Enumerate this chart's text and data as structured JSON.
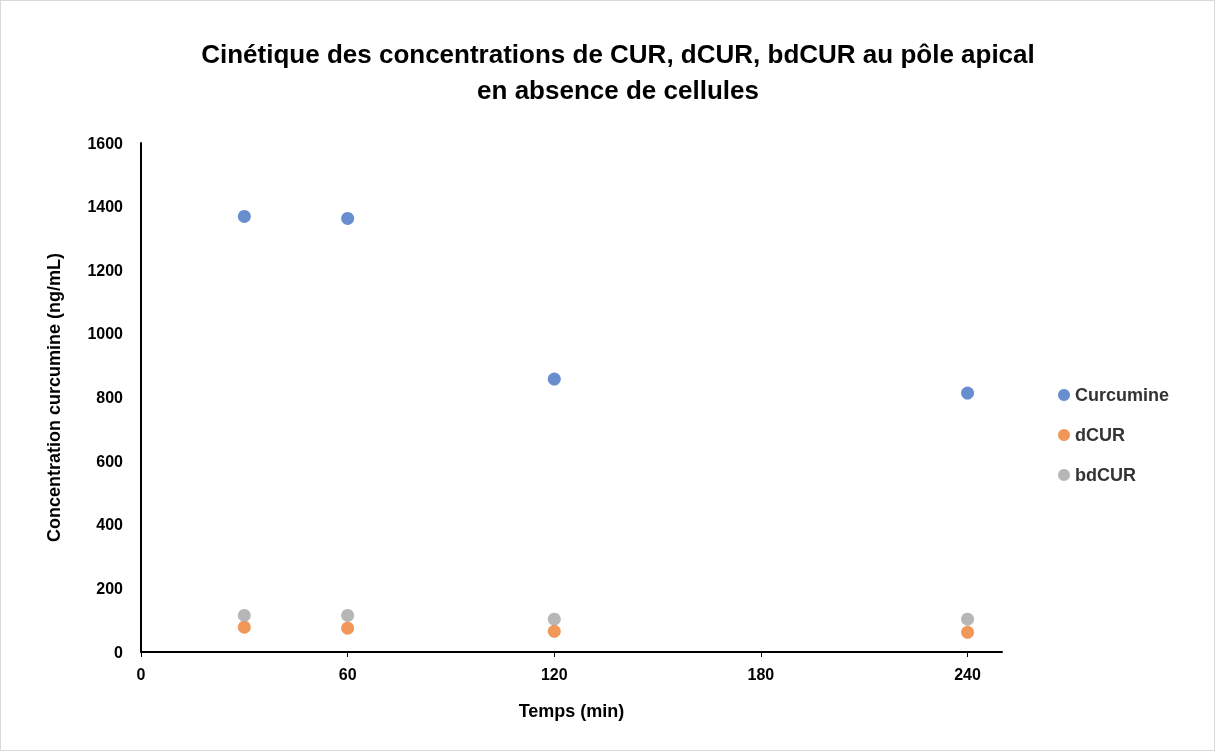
{
  "chart_data": {
    "type": "scatter",
    "title": "Cinétique des concentrations de CUR, dCUR, bdCUR au pôle apical\nen absence de cellules",
    "xlabel": "Temps (min)",
    "ylabel": "Concentration curcumine (ng/mL)",
    "x": [
      30,
      60,
      120,
      240
    ],
    "series": [
      {
        "name": "Curcumine",
        "color": "#4472c4",
        "values": [
          1369,
          1363,
          858,
          814
        ]
      },
      {
        "name": "dCUR",
        "color": "#ed7d31",
        "values": [
          78,
          75,
          65,
          62
        ]
      },
      {
        "name": "bdCUR",
        "color": "#a5a5a5",
        "values": [
          115,
          115,
          103,
          103
        ]
      }
    ],
    "xlim": [
      0,
      250
    ],
    "xticks": [
      0,
      60,
      120,
      180,
      240
    ],
    "ylim": [
      0,
      1600
    ],
    "yticks": [
      0,
      200,
      400,
      600,
      800,
      1000,
      1200,
      1400,
      1600
    ],
    "grid": false,
    "legend": "right",
    "marker": "circle"
  }
}
